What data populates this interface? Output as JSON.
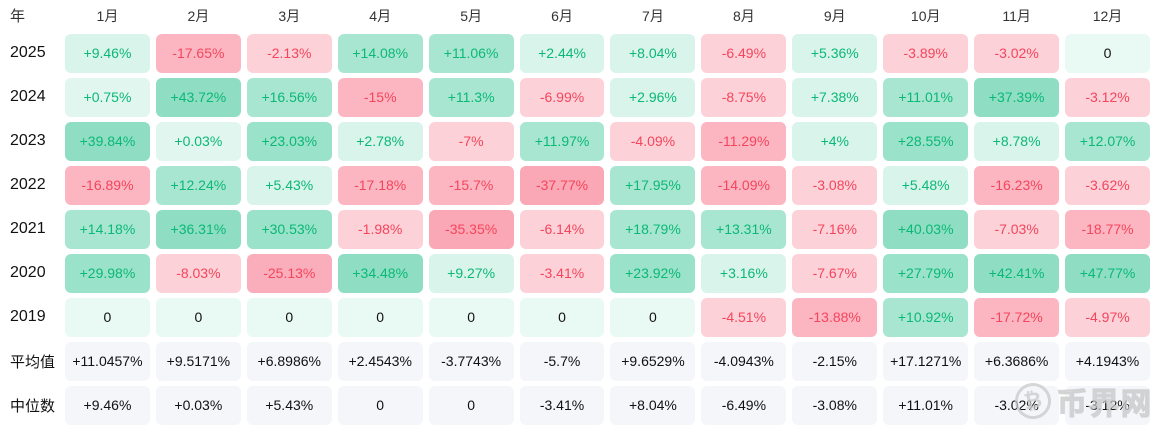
{
  "table": {
    "corner_label": "年",
    "months": [
      "1月",
      "2月",
      "3月",
      "4月",
      "5月",
      "6月",
      "7月",
      "8月",
      "9月",
      "10月",
      "11月",
      "12月"
    ],
    "rows": [
      {
        "label": "2025",
        "kind": "year",
        "cells": [
          "+9.46%",
          "-17.65%",
          "-2.13%",
          "+14.08%",
          "+11.06%",
          "+2.44%",
          "+8.04%",
          "-6.49%",
          "+5.36%",
          "-3.89%",
          "-3.02%",
          "0"
        ]
      },
      {
        "label": "2024",
        "kind": "year",
        "cells": [
          "+0.75%",
          "+43.72%",
          "+16.56%",
          "-15%",
          "+11.3%",
          "-6.99%",
          "+2.96%",
          "-8.75%",
          "+7.38%",
          "+11.01%",
          "+37.39%",
          "-3.12%"
        ]
      },
      {
        "label": "2023",
        "kind": "year",
        "cells": [
          "+39.84%",
          "+0.03%",
          "+23.03%",
          "+2.78%",
          "-7%",
          "+11.97%",
          "-4.09%",
          "-11.29%",
          "+4%",
          "+28.55%",
          "+8.78%",
          "+12.07%"
        ]
      },
      {
        "label": "2022",
        "kind": "year",
        "cells": [
          "-16.89%",
          "+12.24%",
          "+5.43%",
          "-17.18%",
          "-15.7%",
          "-37.77%",
          "+17.95%",
          "-14.09%",
          "-3.08%",
          "+5.48%",
          "-16.23%",
          "-3.62%"
        ]
      },
      {
        "label": "2021",
        "kind": "year",
        "cells": [
          "+14.18%",
          "+36.31%",
          "+30.53%",
          "-1.98%",
          "-35.35%",
          "-6.14%",
          "+18.79%",
          "+13.31%",
          "-7.16%",
          "+40.03%",
          "-7.03%",
          "-18.77%"
        ]
      },
      {
        "label": "2020",
        "kind": "year",
        "cells": [
          "+29.98%",
          "-8.03%",
          "-25.13%",
          "+34.48%",
          "+9.27%",
          "-3.41%",
          "+23.92%",
          "+3.16%",
          "-7.67%",
          "+27.79%",
          "+42.41%",
          "+47.77%"
        ]
      },
      {
        "label": "2019",
        "kind": "year",
        "cells": [
          "0",
          "0",
          "0",
          "0",
          "0",
          "0",
          "0",
          "-4.51%",
          "-13.88%",
          "+10.92%",
          "-17.72%",
          "-4.97%"
        ]
      },
      {
        "label": "平均值",
        "kind": "summary",
        "cells": [
          "+11.0457%",
          "+9.5171%",
          "+6.8986%",
          "+2.4543%",
          "-3.7743%",
          "-5.7%",
          "+9.6529%",
          "-4.0943%",
          "-2.15%",
          "+17.1271%",
          "+6.3686%",
          "+4.1943%"
        ]
      },
      {
        "label": "中位数",
        "kind": "summary",
        "cells": [
          "+9.46%",
          "+0.03%",
          "+5.43%",
          "0",
          "0",
          "-3.41%",
          "+8.04%",
          "-6.49%",
          "-3.08%",
          "+11.01%",
          "-3.02%",
          "-3.12%"
        ]
      }
    ]
  },
  "watermark": {
    "site_name": "币界网",
    "icon": "bitcoin-circle-icon",
    "icon_glyph": "₿"
  },
  "colors": {
    "positive_text": "#0ab877",
    "negative_text": "#f5455c",
    "zero_text": "#111111",
    "green_base": "#10b981",
    "red_base": "#f43f5e",
    "summary_bg": "#f4f6fa",
    "summary_text": "#111111",
    "header_text": "#333333",
    "row_label_text": "#111111",
    "watermark_color": "#c9c9c9"
  },
  "chart_data": {
    "type": "heatmap",
    "title": "",
    "corner_label": "年",
    "x_labels": [
      "1月",
      "2月",
      "3月",
      "4月",
      "5月",
      "6月",
      "7月",
      "8月",
      "9月",
      "10月",
      "11月",
      "12月"
    ],
    "y_labels": [
      "2025",
      "2024",
      "2023",
      "2022",
      "2021",
      "2020",
      "2019",
      "平均值",
      "中位数"
    ],
    "unit": "%",
    "legend_position": "none",
    "grid": false,
    "values": [
      [
        9.46,
        -17.65,
        -2.13,
        14.08,
        11.06,
        2.44,
        8.04,
        -6.49,
        5.36,
        -3.89,
        -3.02,
        0
      ],
      [
        0.75,
        43.72,
        16.56,
        -15,
        11.3,
        -6.99,
        2.96,
        -8.75,
        7.38,
        11.01,
        37.39,
        -3.12
      ],
      [
        39.84,
        0.03,
        23.03,
        2.78,
        -7,
        11.97,
        -4.09,
        -11.29,
        4,
        28.55,
        8.78,
        12.07
      ],
      [
        -16.89,
        12.24,
        5.43,
        -17.18,
        -15.7,
        -37.77,
        17.95,
        -14.09,
        -3.08,
        5.48,
        -16.23,
        -3.62
      ],
      [
        14.18,
        36.31,
        30.53,
        -1.98,
        -35.35,
        -6.14,
        18.79,
        13.31,
        -7.16,
        40.03,
        -7.03,
        -18.77
      ],
      [
        29.98,
        -8.03,
        -25.13,
        34.48,
        9.27,
        -3.41,
        23.92,
        3.16,
        -7.67,
        27.79,
        42.41,
        47.77
      ],
      [
        0,
        0,
        0,
        0,
        0,
        0,
        0,
        -4.51,
        -13.88,
        10.92,
        -17.72,
        -4.97
      ],
      [
        11.0457,
        9.5171,
        6.8986,
        2.4543,
        -3.7743,
        -5.7,
        9.6529,
        -4.0943,
        -2.15,
        17.1271,
        6.3686,
        4.1943
      ],
      [
        9.46,
        0.03,
        5.43,
        0,
        0,
        -3.41,
        8.04,
        -6.49,
        -3.08,
        11.01,
        -3.02,
        -3.12
      ]
    ]
  }
}
